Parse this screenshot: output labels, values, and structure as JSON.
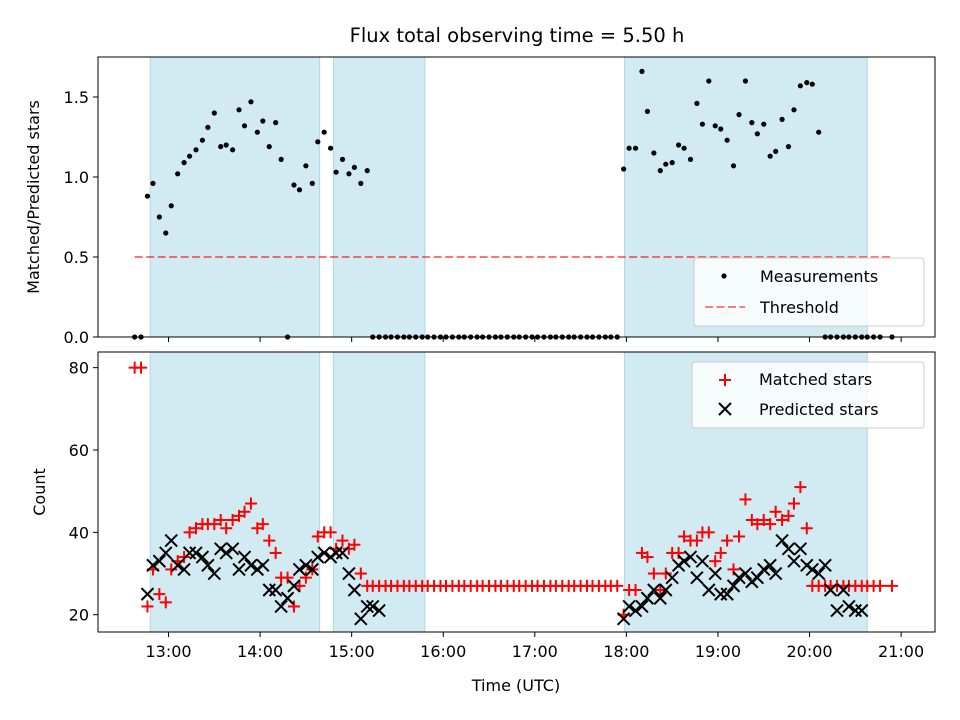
{
  "chart_data": {
    "type": "scatter",
    "title": "Flux total observing time = 5.50 h",
    "xlabel": "Time (UTC)",
    "x_ticks": [
      "13:00",
      "14:00",
      "15:00",
      "16:00",
      "17:00",
      "18:00",
      "19:00",
      "20:00",
      "21:00"
    ],
    "xlim_hours": [
      12.23,
      21.37
    ],
    "observing_windows_hours": [
      [
        12.8,
        14.65
      ],
      [
        14.8,
        15.8
      ],
      [
        17.98,
        20.63
      ]
    ],
    "shade_color": "#add8e6",
    "panels": [
      {
        "ylabel": "Matched/Predicted stars",
        "ylim": [
          0,
          1.75
        ],
        "y_ticks": [
          0.0,
          0.5,
          1.0,
          1.5
        ],
        "y_tick_labels": [
          "0.0",
          "0.5",
          "1.0",
          "1.5"
        ],
        "legend": [
          {
            "label": "Measurements",
            "marker": "dot",
            "color": "#000000"
          },
          {
            "label": "Threshold",
            "marker": "dashed-line",
            "color": "#ff0000"
          }
        ],
        "threshold": {
          "value": 0.5,
          "x_range": [
            12.63,
            20.9
          ],
          "color": "#ff0000"
        },
        "measurements": {
          "x": [
            12.63,
            12.7,
            12.77,
            12.83,
            12.9,
            12.97,
            13.03,
            13.1,
            13.17,
            13.23,
            13.3,
            13.37,
            13.43,
            13.5,
            13.57,
            13.63,
            13.7,
            13.77,
            13.83,
            13.9,
            13.97,
            14.03,
            14.1,
            14.17,
            14.23,
            14.3,
            14.37,
            14.43,
            14.5,
            14.57,
            14.63,
            14.7,
            14.77,
            14.83,
            14.9,
            14.97,
            15.03,
            15.1,
            15.17,
            15.23,
            15.3,
            15.37,
            15.43,
            15.5,
            15.57,
            15.63,
            15.7,
            15.77,
            15.83,
            15.9,
            15.97,
            16.03,
            16.1,
            16.17,
            16.23,
            16.3,
            16.37,
            16.43,
            16.5,
            16.57,
            16.63,
            16.7,
            16.77,
            16.83,
            16.9,
            16.97,
            17.03,
            17.1,
            17.17,
            17.23,
            17.3,
            17.37,
            17.43,
            17.5,
            17.57,
            17.63,
            17.7,
            17.77,
            17.83,
            17.9,
            17.97,
            18.03,
            18.1,
            18.17,
            18.23,
            18.3,
            18.37,
            18.43,
            18.5,
            18.57,
            18.63,
            18.7,
            18.77,
            18.83,
            18.9,
            18.97,
            19.03,
            19.1,
            19.17,
            19.23,
            19.3,
            19.37,
            19.43,
            19.5,
            19.57,
            19.63,
            19.7,
            19.77,
            19.83,
            19.9,
            19.97,
            20.03,
            20.1,
            20.17,
            20.23,
            20.3,
            20.37,
            20.43,
            20.5,
            20.57,
            20.63,
            20.7,
            20.77,
            20.9
          ],
          "y": [
            0.0,
            0.0,
            0.88,
            0.96,
            0.75,
            0.65,
            0.82,
            1.02,
            1.09,
            1.13,
            1.17,
            1.23,
            1.31,
            1.4,
            1.19,
            1.2,
            1.17,
            1.42,
            1.32,
            1.47,
            1.28,
            1.35,
            1.19,
            1.34,
            1.11,
            0.0,
            0.95,
            0.92,
            1.07,
            0.96,
            1.22,
            1.28,
            1.18,
            1.03,
            1.11,
            1.02,
            1.06,
            0.96,
            1.04,
            0.0,
            0.0,
            0.0,
            0.0,
            0.0,
            0.0,
            0.0,
            0.0,
            0.0,
            0.0,
            0.0,
            0.0,
            0.0,
            0.0,
            0.0,
            0.0,
            0.0,
            0.0,
            0.0,
            0.0,
            0.0,
            0.0,
            0.0,
            0.0,
            0.0,
            0.0,
            0.0,
            0.0,
            0.0,
            0.0,
            0.0,
            0.0,
            0.0,
            0.0,
            0.0,
            0.0,
            0.0,
            0.0,
            0.0,
            0.0,
            0.0,
            1.05,
            1.18,
            1.18,
            1.66,
            1.41,
            1.15,
            1.04,
            1.08,
            1.09,
            1.2,
            1.18,
            1.11,
            1.46,
            1.33,
            1.6,
            1.32,
            1.3,
            1.23,
            1.07,
            1.39,
            1.6,
            1.34,
            1.27,
            1.33,
            1.13,
            1.16,
            1.36,
            1.19,
            1.42,
            1.57,
            1.59,
            1.58,
            1.28,
            0.0,
            0.0,
            0.0,
            0.0,
            0.0,
            0.0,
            0.0,
            0.0,
            0.0,
            0.0,
            0.0
          ]
        }
      },
      {
        "ylabel": "Count",
        "ylim": [
          15.8,
          83.8
        ],
        "y_ticks": [
          20,
          40,
          60,
          80
        ],
        "y_tick_labels": [
          "20",
          "40",
          "60",
          "80"
        ],
        "legend": [
          {
            "label": "Matched stars",
            "marker": "plus",
            "color": "#ff0000"
          },
          {
            "label": "Predicted stars",
            "marker": "x",
            "color": "#000000"
          }
        ],
        "matched": {
          "x": [
            12.63,
            12.7,
            12.77,
            12.83,
            12.9,
            12.97,
            13.03,
            13.1,
            13.17,
            13.23,
            13.3,
            13.37,
            13.43,
            13.5,
            13.57,
            13.63,
            13.7,
            13.77,
            13.83,
            13.9,
            13.97,
            14.03,
            14.1,
            14.17,
            14.23,
            14.3,
            14.37,
            14.43,
            14.5,
            14.57,
            14.63,
            14.7,
            14.77,
            14.83,
            14.9,
            14.97,
            15.03,
            15.1,
            15.17,
            15.23,
            15.3,
            15.37,
            15.43,
            15.5,
            15.57,
            15.63,
            15.7,
            15.77,
            15.83,
            15.9,
            15.97,
            16.03,
            16.1,
            16.17,
            16.23,
            16.3,
            16.37,
            16.43,
            16.5,
            16.57,
            16.63,
            16.7,
            16.77,
            16.83,
            16.9,
            16.97,
            17.03,
            17.1,
            17.17,
            17.23,
            17.3,
            17.37,
            17.43,
            17.5,
            17.57,
            17.63,
            17.7,
            17.77,
            17.83,
            17.9,
            17.97,
            18.03,
            18.1,
            18.17,
            18.23,
            18.3,
            18.37,
            18.43,
            18.5,
            18.57,
            18.63,
            18.7,
            18.77,
            18.83,
            18.9,
            18.97,
            19.03,
            19.1,
            19.17,
            19.23,
            19.3,
            19.37,
            19.43,
            19.5,
            19.57,
            19.63,
            19.7,
            19.77,
            19.83,
            19.9,
            19.97,
            20.03,
            20.1,
            20.17,
            20.23,
            20.3,
            20.37,
            20.43,
            20.5,
            20.57,
            20.63,
            20.7,
            20.77,
            20.9
          ],
          "y": [
            80,
            80,
            22,
            31,
            25,
            23,
            31,
            33,
            34,
            40,
            41,
            42,
            42,
            42,
            43,
            41,
            43,
            44,
            45,
            47,
            41,
            42,
            38,
            35,
            29,
            29,
            22,
            27,
            29,
            31,
            39,
            40,
            40,
            36,
            38,
            36,
            37,
            30,
            27,
            27,
            27,
            27,
            27,
            27,
            27,
            27,
            27,
            27,
            27,
            27,
            27,
            27,
            27,
            27,
            27,
            27,
            27,
            27,
            27,
            27,
            27,
            27,
            27,
            27,
            27,
            27,
            27,
            27,
            27,
            27,
            27,
            27,
            27,
            27,
            27,
            27,
            27,
            27,
            27,
            27,
            20,
            26,
            26,
            35,
            34,
            30,
            26,
            30,
            35,
            35,
            39,
            38,
            38,
            40,
            40,
            33,
            35,
            38,
            31,
            39,
            48,
            43,
            42,
            43,
            42,
            45,
            43,
            44,
            47,
            51,
            41,
            27,
            27,
            27,
            27,
            27,
            27,
            27,
            27,
            27,
            27,
            27,
            27,
            27
          ]
        },
        "predicted": {
          "x": [
            12.77,
            12.83,
            12.9,
            12.97,
            13.03,
            13.1,
            13.17,
            13.23,
            13.3,
            13.37,
            13.43,
            13.5,
            13.57,
            13.63,
            13.7,
            13.77,
            13.83,
            13.9,
            13.97,
            14.03,
            14.1,
            14.17,
            14.23,
            14.3,
            14.37,
            14.43,
            14.5,
            14.57,
            14.63,
            14.7,
            14.77,
            14.83,
            14.9,
            14.97,
            15.03,
            15.1,
            15.17,
            15.23,
            15.3,
            17.97,
            18.03,
            18.1,
            18.17,
            18.23,
            18.3,
            18.37,
            18.43,
            18.5,
            18.57,
            18.63,
            18.7,
            18.77,
            18.83,
            18.9,
            18.97,
            19.03,
            19.1,
            19.17,
            19.23,
            19.3,
            19.37,
            19.43,
            19.5,
            19.57,
            19.63,
            19.7,
            19.77,
            19.83,
            19.9,
            19.97,
            20.03,
            20.1,
            20.17,
            20.23,
            20.3,
            20.37,
            20.43,
            20.5,
            20.57
          ],
          "y": [
            25,
            32,
            33,
            35,
            38,
            32,
            31,
            35,
            35,
            34,
            32,
            30,
            36,
            35,
            36,
            31,
            34,
            32,
            31,
            32,
            26,
            26,
            22,
            24,
            27,
            31,
            32,
            31,
            34,
            35,
            34,
            35,
            35,
            30,
            26,
            19,
            22,
            22,
            21,
            19,
            22,
            21,
            22,
            24,
            26,
            24,
            26,
            29,
            32,
            33,
            34,
            29,
            33,
            26,
            30,
            25,
            25,
            27,
            29,
            30,
            28,
            29,
            31,
            32,
            30,
            38,
            36,
            33,
            36,
            32,
            31,
            30,
            32,
            26,
            21,
            26,
            22,
            21,
            21
          ]
        }
      }
    ]
  }
}
